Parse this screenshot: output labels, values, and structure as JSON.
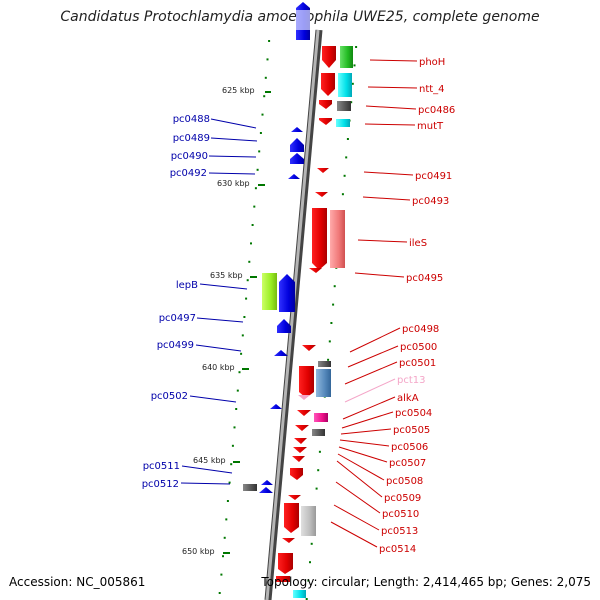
{
  "title": "Candidatus Protochlamydia amoebophila UWE25, complete genome",
  "footer": {
    "accession": "Accession: NC_005861",
    "topology": "Topology: circular; Length: 2,414,465 bp; Genes: 2,075"
  },
  "kbp_labels": [
    "625 kbp",
    "630 kbp",
    "635 kbp",
    "640 kbp",
    "645 kbp",
    "650 kbp"
  ],
  "right_genes": [
    "phoH",
    "ntt_4",
    "pc0486",
    "mutT",
    "pc0491",
    "pc0493",
    "ileS",
    "pc0495",
    "pc0498",
    "pc0500",
    "pc0501",
    "pct13",
    "alkA",
    "pc0504",
    "pc0505",
    "pc0506",
    "pc0507",
    "pc0508",
    "pc0509",
    "pc0510",
    "pc0513",
    "pc0514"
  ],
  "left_genes": [
    "pc0488",
    "pc0489",
    "pc0490",
    "pc0492",
    "lepB",
    "pc0497",
    "pc0499",
    "pc0502",
    "pc0511",
    "pc0512"
  ],
  "colors": {
    "forward_strand": "#ff0000",
    "reverse_strand": "#0000ff",
    "pink_label": "#f4a6c8",
    "tick_green": "#007700",
    "backbone": "#888888"
  }
}
